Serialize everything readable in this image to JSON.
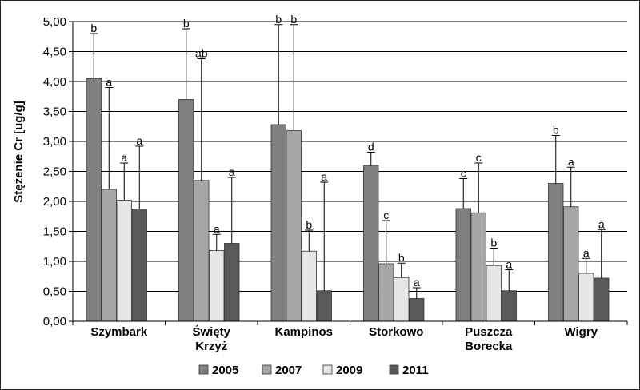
{
  "chart_data": {
    "type": "bar",
    "title": "",
    "xlabel": "",
    "ylabel": "Stężenie Cr [ug/g]",
    "ylim": [
      0,
      5
    ],
    "ytick_step": 0.5,
    "yticks": [
      "0,00",
      "0,50",
      "1,00",
      "1,50",
      "2,00",
      "2,50",
      "3,00",
      "3,50",
      "4,00",
      "4,50",
      "5,00"
    ],
    "grid": true,
    "legend_position": "bottom",
    "categories": [
      [
        "Szymbark"
      ],
      [
        "Święty",
        "Krzyż"
      ],
      [
        "Kampinos"
      ],
      [
        "Storkowo"
      ],
      [
        "Puszcza",
        "Borecka"
      ],
      [
        "Wigry"
      ]
    ],
    "series": [
      {
        "name": "2005",
        "color": "#7f7f7f",
        "values": [
          4.05,
          3.7,
          3.28,
          2.6,
          1.88,
          2.3
        ],
        "error_top": [
          4.8,
          4.88,
          4.95,
          2.82,
          2.38,
          3.1
        ],
        "letters": [
          "b",
          "b",
          "b",
          "d",
          "c",
          "b"
        ]
      },
      {
        "name": "2007",
        "color": "#a6a6a6",
        "values": [
          2.2,
          2.35,
          3.18,
          0.96,
          1.81,
          1.91
        ],
        "error_top": [
          3.9,
          4.38,
          4.95,
          1.68,
          2.64,
          2.57
        ],
        "letters": [
          "a",
          "ab",
          "b",
          "c",
          "c",
          "a"
        ]
      },
      {
        "name": "2009",
        "color": "#e6e6e6",
        "values": [
          2.02,
          1.18,
          1.17,
          0.73,
          0.93,
          0.8
        ],
        "error_top": [
          2.64,
          1.45,
          1.52,
          0.97,
          1.22,
          1.05
        ],
        "letters": [
          "a",
          "a",
          "b",
          "b",
          "b",
          "a"
        ]
      },
      {
        "name": "2011",
        "color": "#595959",
        "values": [
          1.87,
          1.3,
          0.51,
          0.38,
          0.51,
          0.72
        ],
        "error_top": [
          2.92,
          2.4,
          2.32,
          0.56,
          0.86,
          1.53
        ],
        "letters": [
          "a",
          "a",
          "a",
          "a",
          "a",
          "a"
        ]
      }
    ]
  }
}
